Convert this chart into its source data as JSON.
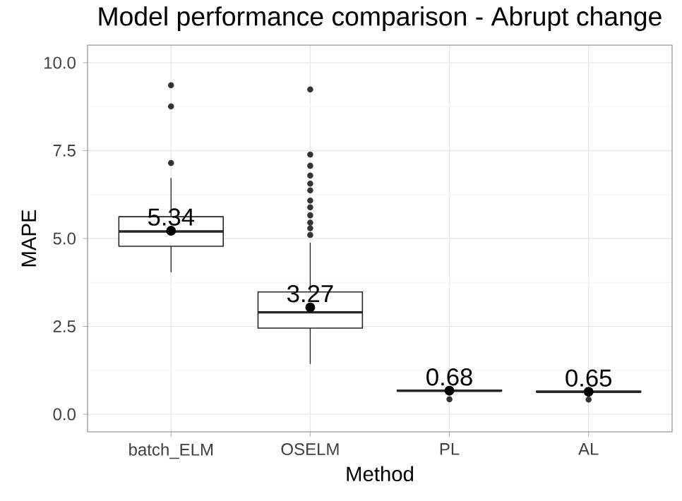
{
  "chart_data": {
    "type": "box",
    "title": "Model performance comparison - Abrupt change",
    "xlabel": "Method",
    "ylabel": "MAPE",
    "categories": [
      "batch_ELM",
      "OSELM",
      "PL",
      "AL"
    ],
    "boxes": [
      {
        "low": 4.04,
        "q1": 4.78,
        "median": 5.2,
        "q3": 5.62,
        "high": 6.72,
        "mean": 5.22,
        "outliers": [
          9.36,
          8.76,
          7.15
        ]
      },
      {
        "low": 1.43,
        "q1": 2.45,
        "median": 2.9,
        "q3": 3.48,
        "high": 4.88,
        "mean": 3.04,
        "outliers": [
          9.24,
          7.39,
          7.07,
          6.79,
          6.56,
          6.37,
          6.08,
          5.89,
          5.66,
          5.45,
          5.29,
          5.1
        ]
      },
      {
        "low": 0.6,
        "q1": 0.66,
        "median": 0.67,
        "q3": 0.69,
        "high": 0.74,
        "mean": 0.67,
        "outliers": [
          0.43
        ]
      },
      {
        "low": 0.58,
        "q1": 0.63,
        "median": 0.64,
        "q3": 0.66,
        "high": 0.7,
        "mean": 0.64,
        "outliers": [
          0.42
        ]
      }
    ],
    "ylim": [
      -0.5,
      10.5
    ],
    "yticks": [
      {
        "value": 0,
        "label": "0.0"
      },
      {
        "value": 2.5,
        "label": "2.5"
      },
      {
        "value": 5,
        "label": "5.0"
      },
      {
        "value": 7.5,
        "label": "7.5"
      },
      {
        "value": 10,
        "label": "10.0"
      }
    ],
    "grid": true,
    "annotations": [
      "5.34",
      "3.27",
      "0.68",
      "0.65"
    ]
  }
}
